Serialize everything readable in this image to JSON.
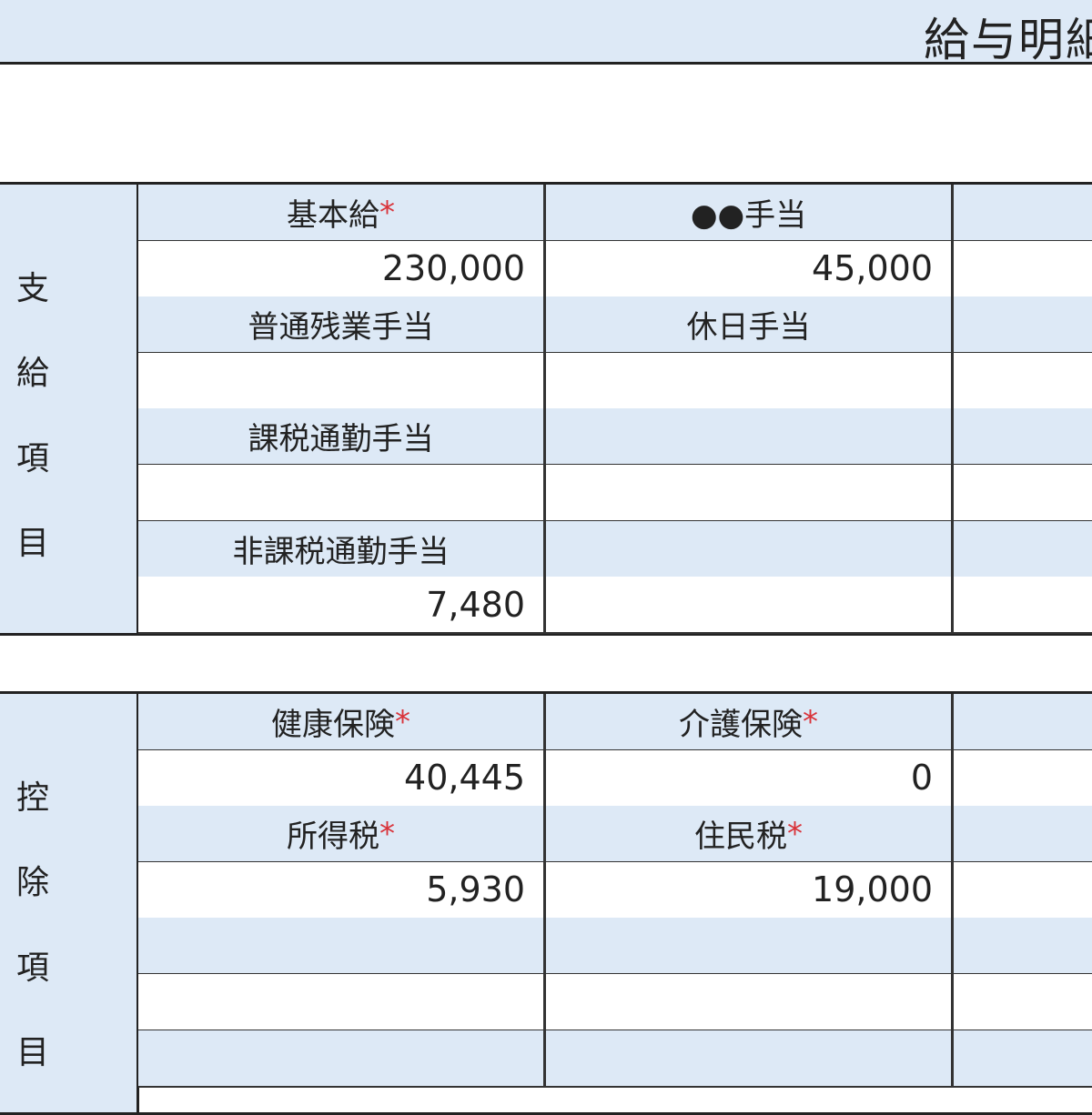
{
  "title": "給与明細",
  "payments": {
    "side_label": [
      "支",
      "給",
      "項",
      "目"
    ],
    "rows": [
      {
        "type": "header",
        "cells": [
          {
            "label": "基本給",
            "required": true
          },
          {
            "label": "●●手当",
            "required": false
          },
          {
            "label": "",
            "required": false
          }
        ]
      },
      {
        "type": "value",
        "cells": [
          "230,000",
          "45,000",
          ""
        ]
      },
      {
        "type": "header",
        "cells": [
          {
            "label": "普通残業手当",
            "required": false
          },
          {
            "label": "休日手当",
            "required": false
          },
          {
            "label": "",
            "required": false
          }
        ]
      },
      {
        "type": "value",
        "cells": [
          "",
          "",
          ""
        ]
      },
      {
        "type": "header",
        "cells": [
          {
            "label": "課税通勤手当",
            "required": false
          },
          {
            "label": "",
            "required": false
          },
          {
            "label": "",
            "required": false
          }
        ]
      },
      {
        "type": "value",
        "cells": [
          "",
          "",
          ""
        ]
      },
      {
        "type": "header",
        "cells": [
          {
            "label": "非課税通勤手当",
            "required": false
          },
          {
            "label": "",
            "required": false
          },
          {
            "label": "",
            "required": false
          }
        ]
      },
      {
        "type": "value",
        "cells": [
          "7,480",
          "",
          ""
        ]
      }
    ]
  },
  "deductions": {
    "side_label": [
      "控",
      "除",
      "項",
      "目"
    ],
    "rows": [
      {
        "type": "header",
        "cells": [
          {
            "label": "健康保険",
            "required": true
          },
          {
            "label": "介護保険",
            "required": true
          },
          {
            "label": "",
            "required": false
          }
        ]
      },
      {
        "type": "value",
        "cells": [
          "40,445",
          "0",
          ""
        ]
      },
      {
        "type": "header",
        "cells": [
          {
            "label": "所得税",
            "required": true
          },
          {
            "label": "住民税",
            "required": true
          },
          {
            "label": "",
            "required": false
          }
        ]
      },
      {
        "type": "value",
        "cells": [
          "5,930",
          "19,000",
          ""
        ]
      },
      {
        "type": "header",
        "cells": [
          {
            "label": "",
            "required": false
          },
          {
            "label": "",
            "required": false
          },
          {
            "label": "",
            "required": false
          }
        ]
      },
      {
        "type": "value",
        "cells": [
          "",
          "",
          ""
        ]
      },
      {
        "type": "header",
        "cells": [
          {
            "label": "",
            "required": false
          },
          {
            "label": "",
            "required": false
          },
          {
            "label": "",
            "required": false
          }
        ]
      }
    ]
  },
  "required_mark": "*",
  "colors": {
    "header_bg": "#dde9f6",
    "required": "#d9333a"
  }
}
